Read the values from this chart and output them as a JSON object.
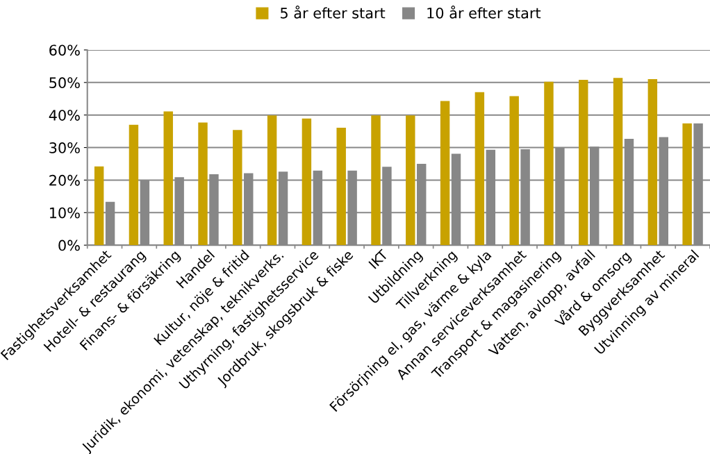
{
  "chart_data": {
    "type": "bar",
    "categories": [
      "Fastighetsverksamhet",
      "Hotell- & restaurang",
      "Finans- & försäkring",
      "Handel",
      "Kultur, nöje & fritid",
      "Juridik, ekonomi, vetenskap, teknikverks.",
      "Uthyrning, fastighetsservice",
      "Jordbruk, skogsbruk & fiske",
      "IKT",
      "Utbildning",
      "Tillverkning",
      "Försörjning el, gas, värme & kyla",
      "Annan serviceverksamhet",
      "Transport & magasinering",
      "Vatten, avlopp, avfall",
      "Vård & omsorg",
      "Byggverksamhet",
      "Utvinning av mineral"
    ],
    "series": [
      {
        "name": "5 år efter start",
        "color": "#c8a200",
        "values": [
          24.2,
          37.0,
          41.1,
          37.7,
          35.4,
          39.9,
          38.9,
          36.1,
          39.9,
          39.9,
          44.3,
          47.0,
          45.8,
          50.2,
          50.8,
          51.4,
          51.0,
          37.4
        ]
      },
      {
        "name": "10 år efter start",
        "color": "#878787",
        "values": [
          13.3,
          19.9,
          20.9,
          21.8,
          22.1,
          22.6,
          22.9,
          22.9,
          24.1,
          25.0,
          28.1,
          29.3,
          29.5,
          30.0,
          30.3,
          32.7,
          33.2,
          37.4
        ]
      }
    ],
    "ylim": [
      0,
      60
    ],
    "yticks": [
      {
        "value": 0,
        "label": "0%"
      },
      {
        "value": 10,
        "label": "10%"
      },
      {
        "value": 20,
        "label": "20%"
      },
      {
        "value": 30,
        "label": "30%"
      },
      {
        "value": 40,
        "label": "40%"
      },
      {
        "value": 50,
        "label": "50%"
      },
      {
        "value": 60,
        "label": "60%"
      }
    ],
    "grid": "y",
    "legend": "top"
  }
}
